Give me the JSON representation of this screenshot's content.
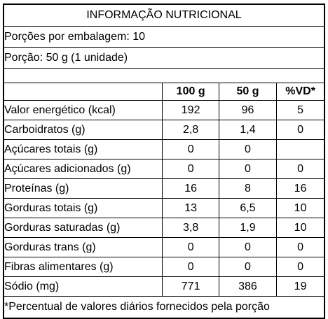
{
  "title": "INFORMAÇÃO NUTRICIONAL",
  "servings_per_package": "Porções por embalagem: 10",
  "serving_size": "Porção: 50 g (1 unidade)",
  "columns": [
    "100 g",
    "50 g",
    "%VD*"
  ],
  "rows": [
    {
      "name": "Valor energético (kcal)",
      "indent": 0,
      "per100": "192",
      "per_serving": "96",
      "dv": "5"
    },
    {
      "name": "Carboidratos (g)",
      "indent": 0,
      "per100": "2,8",
      "per_serving": "1,4",
      "dv": "0"
    },
    {
      "name": "Açúcares totais (g)",
      "indent": 1,
      "per100": "0",
      "per_serving": "0",
      "dv": ""
    },
    {
      "name": "Açúcares adicionados (g)",
      "indent": 2,
      "per100": "0",
      "per_serving": "0",
      "dv": "0"
    },
    {
      "name": "Proteínas (g)",
      "indent": 0,
      "per100": "16",
      "per_serving": "8",
      "dv": "16"
    },
    {
      "name": "Gorduras totais (g)",
      "indent": 0,
      "per100": "13",
      "per_serving": "6,5",
      "dv": "10"
    },
    {
      "name": "Gorduras saturadas (g)",
      "indent": 1,
      "per100": "3,8",
      "per_serving": "1,9",
      "dv": "10"
    },
    {
      "name": "Gorduras trans (g)",
      "indent": 1,
      "per100": "0",
      "per_serving": "0",
      "dv": "0"
    },
    {
      "name": "Fibras alimentares (g)",
      "indent": 0,
      "per100": "0",
      "per_serving": "0",
      "dv": "0"
    },
    {
      "name": "Sódio (mg)",
      "indent": 0,
      "per100": "771",
      "per_serving": "386",
      "dv": "19"
    }
  ],
  "footnote": "*Percentual de valores diários fornecidos pela porção"
}
